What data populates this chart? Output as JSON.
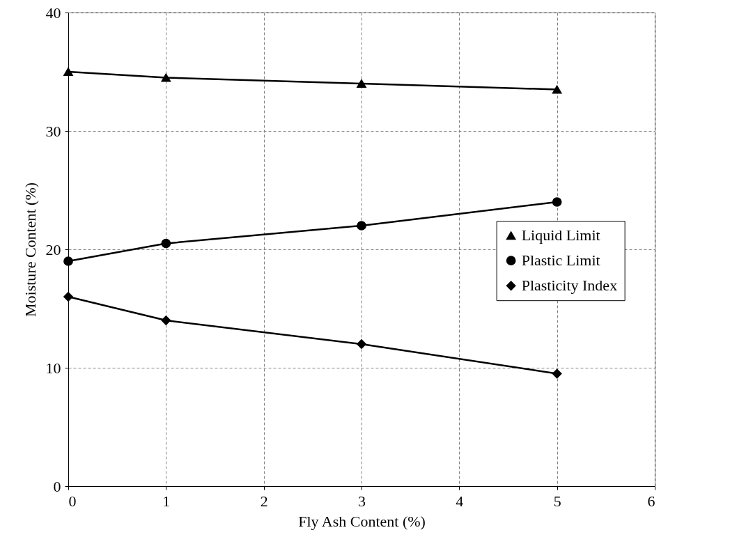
{
  "chart_data": {
    "type": "line",
    "xlabel": "Fly Ash Content (%)",
    "ylabel": "Moisture Content (%)",
    "x": [
      0,
      1,
      3,
      5
    ],
    "series": [
      {
        "name": "Liquid Limit",
        "color": "#000000",
        "marker": "triangle",
        "values": [
          35,
          34.5,
          34,
          33.5
        ]
      },
      {
        "name": "Plastic Limit",
        "color": "#000000",
        "marker": "circle",
        "values": [
          19,
          20.5,
          22,
          24
        ]
      },
      {
        "name": "Plasticity Index",
        "color": "#000000",
        "marker": "diamond",
        "values": [
          16,
          14,
          12,
          9.5
        ]
      }
    ],
    "xlim": [
      0,
      6
    ],
    "xticks": [
      0,
      1,
      2,
      3,
      4,
      5,
      6
    ],
    "ylim": [
      0,
      40
    ],
    "yticks": [
      0,
      10,
      20,
      30,
      40
    ],
    "grid": true,
    "legend": "right",
    "line_style": "solid"
  }
}
